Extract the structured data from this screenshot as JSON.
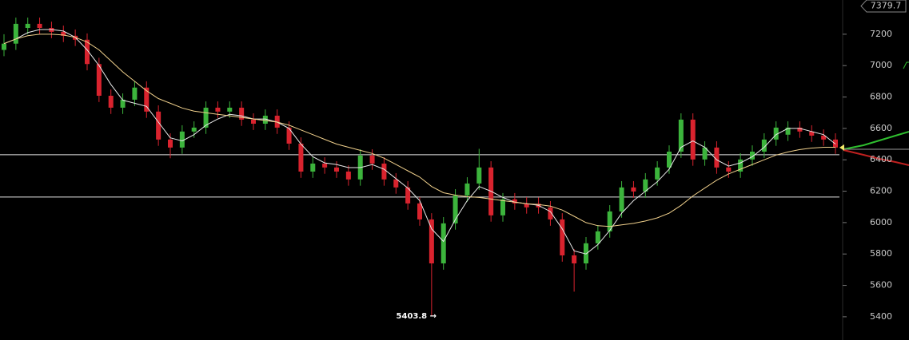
{
  "chart_data": {
    "type": "candlestick",
    "ylim": [
      5252,
      7418
    ],
    "yticks": [
      5400,
      5600,
      5800,
      6000,
      6200,
      6400,
      6600,
      6800,
      7000,
      7200
    ],
    "up_color": "#3cb43c",
    "down_color": "#d9232e",
    "open": [
      7100,
      7140,
      7240,
      7266,
      7240,
      7215,
      7190,
      7165,
      7010,
      6808,
      6732,
      6783,
      6860,
      6707,
      6529,
      6478,
      6580,
      6605,
      6732,
      6707,
      6732,
      6656,
      6630,
      6681,
      6605,
      6503,
      6325,
      6376,
      6351,
      6325,
      6275,
      6427,
      6376,
      6275,
      6224,
      6122,
      6020,
      5740,
      5995,
      6173,
      6249,
      6351,
      6046,
      6148,
      6122,
      6120,
      6097,
      6020,
      5791,
      5740,
      5868,
      5944,
      6071,
      6224,
      6198,
      6275,
      6351,
      6452,
      6656,
      6402,
      6478,
      6351,
      6325,
      6402,
      6452,
      6529,
      6560,
      6605,
      6580,
      6554,
      6529
    ],
    "high": [
      7200,
      7306,
      7306,
      7306,
      7280,
      7255,
      7230,
      7205,
      7050,
      6848,
      6823,
      6900,
      6900,
      6747,
      6569,
      6620,
      6645,
      6772,
      6772,
      6772,
      6772,
      6696,
      6721,
      6721,
      6645,
      6543,
      6416,
      6416,
      6391,
      6365,
      6467,
      6467,
      6416,
      6315,
      6264,
      6162,
      6060,
      6035,
      6213,
      6289,
      6470,
      6391,
      6188,
      6188,
      6162,
      6160,
      6137,
      6060,
      5831,
      5908,
      5984,
      6111,
      6264,
      6264,
      6315,
      6391,
      6492,
      6696,
      6696,
      6518,
      6518,
      6391,
      6442,
      6492,
      6569,
      6645,
      6645,
      6645,
      6620,
      6594,
      6569
    ],
    "low": [
      7060,
      7100,
      7200,
      7200,
      7175,
      7150,
      7125,
      6970,
      6768,
      6692,
      6692,
      6743,
      6667,
      6489,
      6410,
      6438,
      6540,
      6565,
      6667,
      6667,
      6616,
      6590,
      6590,
      6565,
      6463,
      6285,
      6285,
      6311,
      6285,
      6235,
      6235,
      6336,
      6235,
      6184,
      6082,
      5980,
      5403.8,
      5700,
      5955,
      6133,
      6209,
      6006,
      6006,
      6082,
      6057,
      6057,
      5980,
      5751,
      5560,
      5700,
      5828,
      5904,
      6031,
      6158,
      6158,
      6235,
      6311,
      6412,
      6362,
      6362,
      6311,
      6285,
      6285,
      6362,
      6412,
      6489,
      6520,
      6540,
      6514,
      6489,
      6438
    ],
    "close": [
      7140,
      7266,
      7266,
      7240,
      7215,
      7190,
      7165,
      7010,
      6808,
      6732,
      6783,
      6860,
      6707,
      6529,
      6478,
      6580,
      6605,
      6732,
      6707,
      6732,
      6656,
      6630,
      6681,
      6605,
      6503,
      6325,
      6376,
      6351,
      6325,
      6275,
      6427,
      6376,
      6275,
      6224,
      6122,
      6020,
      5740,
      5995,
      6173,
      6249,
      6351,
      6046,
      6148,
      6122,
      6097,
      6097,
      6020,
      5791,
      5740,
      5868,
      5944,
      6071,
      6224,
      6198,
      6275,
      6351,
      6452,
      6656,
      6402,
      6478,
      6351,
      6325,
      6402,
      6452,
      6529,
      6605,
      6605,
      6580,
      6554,
      6529,
      6478
    ],
    "series": [
      {
        "color": "#e8e8e8",
        "values": [
          7140,
          7170,
          7210,
          7230,
          7230,
          7220,
          7180,
          7100,
          7000,
          6880,
          6780,
          6760,
          6740,
          6640,
          6540,
          6520,
          6560,
          6620,
          6660,
          6690,
          6680,
          6660,
          6660,
          6640,
          6600,
          6500,
          6420,
          6380,
          6370,
          6350,
          6350,
          6370,
          6340,
          6280,
          6220,
          6140,
          5960,
          5880,
          6020,
          6140,
          6230,
          6200,
          6160,
          6130,
          6120,
          6110,
          6070,
          5960,
          5820,
          5800,
          5860,
          5950,
          6060,
          6140,
          6200,
          6260,
          6340,
          6480,
          6520,
          6480,
          6400,
          6360,
          6380,
          6420,
          6480,
          6560,
          6600,
          6600,
          6580,
          6560,
          6500
        ]
      },
      {
        "color": "#f0d08c",
        "values": [
          7140,
          7170,
          7190,
          7200,
          7200,
          7195,
          7180,
          7150,
          7100,
          7030,
          6960,
          6900,
          6840,
          6790,
          6760,
          6730,
          6710,
          6700,
          6690,
          6680,
          6670,
          6660,
          6650,
          6640,
          6620,
          6590,
          6560,
          6530,
          6500,
          6480,
          6460,
          6440,
          6410,
          6370,
          6330,
          6290,
          6230,
          6190,
          6175,
          6165,
          6160,
          6150,
          6140,
          6130,
          6120,
          6115,
          6105,
          6080,
          6040,
          6000,
          5980,
          5975,
          5985,
          5995,
          6010,
          6030,
          6060,
          6110,
          6170,
          6220,
          6270,
          6310,
          6340,
          6370,
          6400,
          6430,
          6450,
          6465,
          6475,
          6480,
          6480
        ]
      }
    ],
    "hlines": [
      6432,
      6163
    ],
    "hline_color": "#e6e6e6",
    "price_tag": {
      "value": 7379.7,
      "label": "7379.7"
    },
    "low_label": {
      "value": 5403.8,
      "label": "5403.8 →"
    }
  }
}
